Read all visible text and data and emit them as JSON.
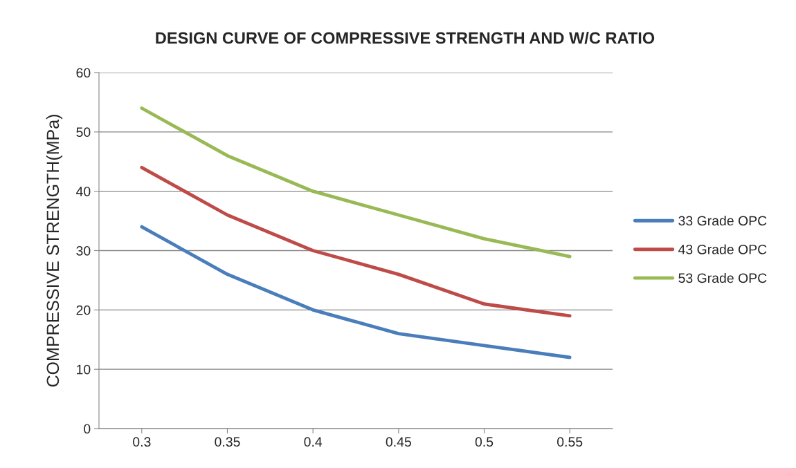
{
  "chart_data": {
    "type": "line",
    "title": "DESIGN CURVE OF COMPRESSIVE STRENGTH AND W/C RATIO",
    "ylabel": "COMPRESSIVE STRENGTH(MPa)",
    "categories": [
      "0.3",
      "0.35",
      "0.4",
      "0.45",
      "0.5",
      "0.55"
    ],
    "series": [
      {
        "name": "33 Grade OPC",
        "color": "#4a7ebb",
        "values": [
          34,
          26,
          20,
          16,
          14,
          12
        ]
      },
      {
        "name": "43 Grade OPC",
        "color": "#be4b48",
        "values": [
          44,
          36,
          30,
          26,
          21,
          19
        ]
      },
      {
        "name": "53 Grade OPC",
        "color": "#98b954",
        "values": [
          54,
          46,
          40,
          36,
          32,
          29
        ]
      }
    ],
    "ylim": [
      0,
      60
    ],
    "yticks": [
      0,
      10,
      20,
      30,
      40,
      50,
      60
    ],
    "grid": "y",
    "legend": "right",
    "marker": "none",
    "line_style": "solid"
  }
}
